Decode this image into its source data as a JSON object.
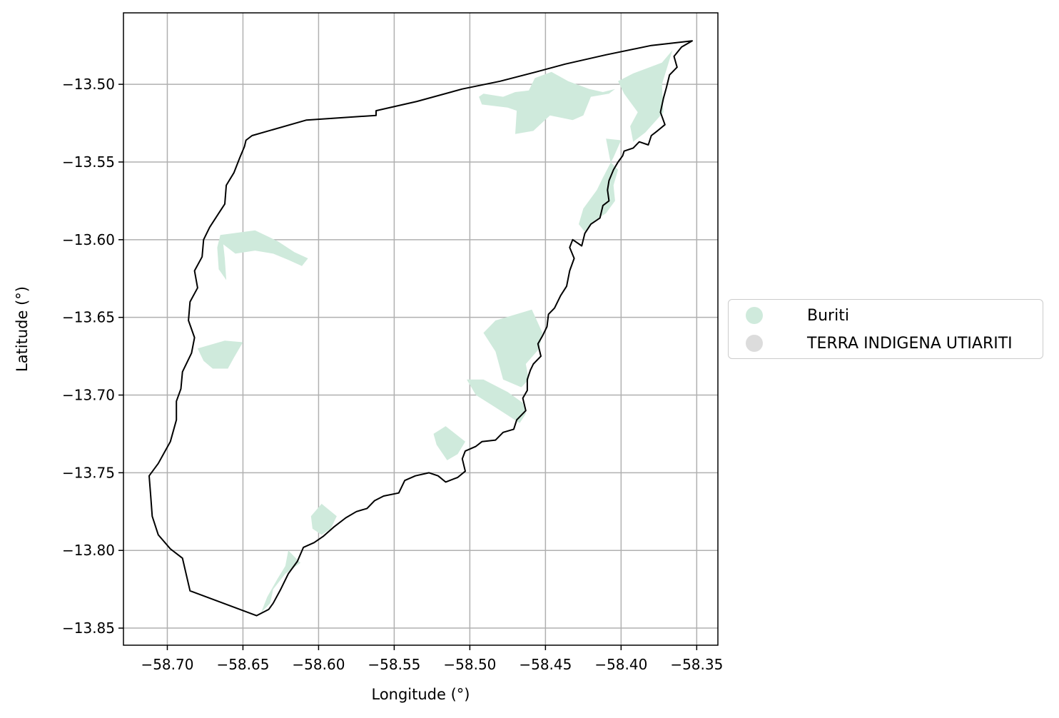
{
  "chart_data": {
    "type": "map",
    "xlabel": "Longitude (°)",
    "ylabel": "Latitude (°)",
    "xlim": [
      -58.729,
      -58.336
    ],
    "ylim": [
      -13.861,
      -13.454
    ],
    "grid": true,
    "x_ticks": [
      {
        "value": -58.7,
        "label": "−58.70"
      },
      {
        "value": -58.65,
        "label": "−58.65"
      },
      {
        "value": -58.6,
        "label": "−58.60"
      },
      {
        "value": -58.55,
        "label": "−58.55"
      },
      {
        "value": -58.5,
        "label": "−58.50"
      },
      {
        "value": -58.45,
        "label": "−58.45"
      },
      {
        "value": -58.4,
        "label": "−58.40"
      },
      {
        "value": -58.35,
        "label": "−58.35"
      }
    ],
    "y_ticks": [
      {
        "value": -13.5,
        "label": "−13.50"
      },
      {
        "value": -13.55,
        "label": "−13.55"
      },
      {
        "value": -13.6,
        "label": "−13.60"
      },
      {
        "value": -13.65,
        "label": "−13.65"
      },
      {
        "value": -13.7,
        "label": "−13.70"
      },
      {
        "value": -13.75,
        "label": "−13.75"
      },
      {
        "value": -13.8,
        "label": "−13.80"
      },
      {
        "value": -13.85,
        "label": "−13.85"
      }
    ],
    "legend_position": "outside-right",
    "legend": [
      {
        "label": "Buriti",
        "color": "#cfeadc"
      },
      {
        "label": "TERRA INDIGENA UTIARITI",
        "color": "#dcdcdc"
      }
    ],
    "boundary": {
      "name": "TERRA INDIGENA UTIARITI",
      "stroke": "#000000",
      "fill": "none",
      "coords": [
        [
          -58.353,
          -13.472
        ],
        [
          -58.36,
          -13.476
        ],
        [
          -58.365,
          -13.482
        ],
        [
          -58.363,
          -13.489
        ],
        [
          -58.368,
          -13.494
        ],
        [
          -58.37,
          -13.502
        ],
        [
          -58.372,
          -13.509
        ],
        [
          -58.374,
          -13.518
        ],
        [
          -58.371,
          -13.526
        ],
        [
          -58.376,
          -13.53
        ],
        [
          -58.38,
          -13.533
        ],
        [
          -58.382,
          -13.539
        ],
        [
          -58.388,
          -13.537
        ],
        [
          -58.392,
          -13.541
        ],
        [
          -58.398,
          -13.543
        ],
        [
          -58.399,
          -13.546
        ],
        [
          -58.402,
          -13.55
        ],
        [
          -58.405,
          -13.555
        ],
        [
          -58.408,
          -13.562
        ],
        [
          -58.409,
          -13.568
        ],
        [
          -58.408,
          -13.575
        ],
        [
          -58.412,
          -13.578
        ],
        [
          -58.414,
          -13.586
        ],
        [
          -58.42,
          -13.59
        ],
        [
          -58.424,
          -13.596
        ],
        [
          -58.426,
          -13.604
        ],
        [
          -58.432,
          -13.6
        ],
        [
          -58.434,
          -13.605
        ],
        [
          -58.431,
          -13.612
        ],
        [
          -58.434,
          -13.62
        ],
        [
          -58.436,
          -13.63
        ],
        [
          -58.44,
          -13.636
        ],
        [
          -58.444,
          -13.644
        ],
        [
          -58.448,
          -13.648
        ],
        [
          -58.449,
          -13.656
        ],
        [
          -58.452,
          -13.662
        ],
        [
          -58.455,
          -13.667
        ],
        [
          -58.453,
          -13.675
        ],
        [
          -58.458,
          -13.68
        ],
        [
          -58.46,
          -13.684
        ],
        [
          -58.462,
          -13.69
        ],
        [
          -58.462,
          -13.697
        ],
        [
          -58.465,
          -13.702
        ],
        [
          -58.463,
          -13.71
        ],
        [
          -58.469,
          -13.716
        ],
        [
          -58.471,
          -13.722
        ],
        [
          -58.478,
          -13.724
        ],
        [
          -58.483,
          -13.729
        ],
        [
          -58.492,
          -13.73
        ],
        [
          -58.496,
          -13.733
        ],
        [
          -58.503,
          -13.736
        ],
        [
          -58.505,
          -13.741
        ],
        [
          -58.503,
          -13.749
        ],
        [
          -58.508,
          -13.753
        ],
        [
          -58.516,
          -13.756
        ],
        [
          -58.521,
          -13.752
        ],
        [
          -58.527,
          -13.75
        ],
        [
          -58.536,
          -13.752
        ],
        [
          -58.543,
          -13.755
        ],
        [
          -58.547,
          -13.763
        ],
        [
          -58.557,
          -13.765
        ],
        [
          -58.563,
          -13.768
        ],
        [
          -58.568,
          -13.773
        ],
        [
          -58.575,
          -13.775
        ],
        [
          -58.582,
          -13.779
        ],
        [
          -58.59,
          -13.785
        ],
        [
          -58.597,
          -13.791
        ],
        [
          -58.603,
          -13.795
        ],
        [
          -58.61,
          -13.798
        ],
        [
          -58.614,
          -13.807
        ],
        [
          -58.62,
          -13.815
        ],
        [
          -58.625,
          -13.825
        ],
        [
          -58.63,
          -13.834
        ],
        [
          -58.633,
          -13.838
        ],
        [
          -58.641,
          -13.842
        ],
        [
          -58.685,
          -13.826
        ],
        [
          -58.69,
          -13.805
        ],
        [
          -58.698,
          -13.799
        ],
        [
          -58.706,
          -13.79
        ],
        [
          -58.71,
          -13.778
        ],
        [
          -58.711,
          -13.765
        ],
        [
          -58.712,
          -13.752
        ],
        [
          -58.706,
          -13.744
        ],
        [
          -58.698,
          -13.73
        ],
        [
          -58.694,
          -13.716
        ],
        [
          -58.694,
          -13.704
        ],
        [
          -58.691,
          -13.696
        ],
        [
          -58.69,
          -13.685
        ],
        [
          -58.684,
          -13.673
        ],
        [
          -58.682,
          -13.663
        ],
        [
          -58.686,
          -13.652
        ],
        [
          -58.685,
          -13.64
        ],
        [
          -58.68,
          -13.631
        ],
        [
          -58.682,
          -13.62
        ],
        [
          -58.677,
          -13.611
        ],
        [
          -58.676,
          -13.6
        ],
        [
          -58.672,
          -13.592
        ],
        [
          -58.666,
          -13.583
        ],
        [
          -58.662,
          -13.577
        ],
        [
          -58.661,
          -13.565
        ],
        [
          -58.656,
          -13.557
        ],
        [
          -58.652,
          -13.547
        ],
        [
          -58.649,
          -13.54
        ],
        [
          -58.648,
          -13.536
        ],
        [
          -58.644,
          -13.533
        ],
        [
          -58.608,
          -13.523
        ],
        [
          -58.562,
          -13.52
        ],
        [
          -58.562,
          -13.517
        ],
        [
          -58.535,
          -13.511
        ],
        [
          -58.505,
          -13.503
        ],
        [
          -58.48,
          -13.498
        ],
        [
          -58.456,
          -13.492
        ],
        [
          -58.437,
          -13.487
        ],
        [
          -58.41,
          -13.481
        ],
        [
          -58.38,
          -13.475
        ],
        [
          -58.353,
          -13.472
        ]
      ]
    },
    "buriti_areas": {
      "name": "Buriti",
      "fill": "#cfeadc",
      "polygons": [
        [
          [
            -58.373,
            -13.486
          ],
          [
            -58.366,
            -13.478
          ],
          [
            -58.373,
            -13.5
          ],
          [
            -58.372,
            -13.518
          ],
          [
            -58.384,
            -13.531
          ],
          [
            -58.392,
            -13.537
          ],
          [
            -58.394,
            -13.527
          ],
          [
            -58.389,
            -13.518
          ],
          [
            -58.398,
            -13.506
          ],
          [
            -58.402,
            -13.498
          ],
          [
            -58.392,
            -13.493
          ]
        ],
        [
          [
            -58.446,
            -13.492
          ],
          [
            -58.457,
            -13.496
          ],
          [
            -58.461,
            -13.504
          ],
          [
            -58.47,
            -13.505
          ],
          [
            -58.478,
            -13.508
          ],
          [
            -58.491,
            -13.506
          ],
          [
            -58.494,
            -13.508
          ],
          [
            -58.492,
            -13.513
          ],
          [
            -58.475,
            -13.515
          ],
          [
            -58.469,
            -13.517
          ],
          [
            -58.47,
            -13.532
          ],
          [
            -58.458,
            -13.53
          ],
          [
            -58.447,
            -13.52
          ],
          [
            -58.432,
            -13.523
          ],
          [
            -58.425,
            -13.52
          ],
          [
            -58.42,
            -13.508
          ],
          [
            -58.408,
            -13.506
          ],
          [
            -58.404,
            -13.503
          ],
          [
            -58.412,
            -13.505
          ],
          [
            -58.421,
            -13.503
          ],
          [
            -58.435,
            -13.498
          ]
        ],
        [
          [
            -58.4,
            -13.536
          ],
          [
            -58.41,
            -13.535
          ],
          [
            -58.407,
            -13.55
          ],
          [
            -58.402,
            -13.555
          ],
          [
            -58.405,
            -13.565
          ],
          [
            -58.404,
            -13.575
          ],
          [
            -58.41,
            -13.583
          ],
          [
            -58.418,
            -13.588
          ],
          [
            -58.424,
            -13.595
          ],
          [
            -58.428,
            -13.59
          ],
          [
            -58.425,
            -13.58
          ],
          [
            -58.416,
            -13.568
          ],
          [
            -58.412,
            -13.56
          ],
          [
            -58.405,
            -13.547
          ]
        ],
        [
          [
            -58.642,
            -13.594
          ],
          [
            -58.627,
            -13.601
          ],
          [
            -58.616,
            -13.608
          ],
          [
            -58.607,
            -13.612
          ],
          [
            -58.611,
            -13.617
          ],
          [
            -58.62,
            -13.613
          ],
          [
            -58.63,
            -13.609
          ],
          [
            -58.642,
            -13.607
          ],
          [
            -58.655,
            -13.609
          ],
          [
            -58.663,
            -13.603
          ],
          [
            -58.662,
            -13.612
          ],
          [
            -58.661,
            -13.626
          ],
          [
            -58.666,
            -13.619
          ],
          [
            -58.667,
            -13.605
          ],
          [
            -58.665,
            -13.597
          ]
        ],
        [
          [
            -58.459,
            -13.645
          ],
          [
            -58.483,
            -13.652
          ],
          [
            -58.491,
            -13.66
          ],
          [
            -58.483,
            -13.672
          ],
          [
            -58.478,
            -13.69
          ],
          [
            -58.466,
            -13.695
          ],
          [
            -58.461,
            -13.69
          ],
          [
            -58.463,
            -13.68
          ],
          [
            -58.454,
            -13.67
          ],
          [
            -58.452,
            -13.66
          ]
        ],
        [
          [
            -58.491,
            -13.69
          ],
          [
            -58.475,
            -13.698
          ],
          [
            -58.465,
            -13.705
          ],
          [
            -58.463,
            -13.712
          ],
          [
            -58.467,
            -13.718
          ],
          [
            -58.483,
            -13.708
          ],
          [
            -58.496,
            -13.7
          ],
          [
            -58.502,
            -13.69
          ]
        ],
        [
          [
            -58.516,
            -13.72
          ],
          [
            -58.503,
            -13.73
          ],
          [
            -58.508,
            -13.738
          ],
          [
            -58.515,
            -13.742
          ],
          [
            -58.522,
            -13.732
          ],
          [
            -58.524,
            -13.725
          ]
        ],
        [
          [
            -58.662,
            -13.665
          ],
          [
            -58.65,
            -13.666
          ],
          [
            -58.656,
            -13.676
          ],
          [
            -58.66,
            -13.683
          ],
          [
            -58.67,
            -13.683
          ],
          [
            -58.676,
            -13.678
          ],
          [
            -58.68,
            -13.67
          ]
        ],
        [
          [
            -58.598,
            -13.77
          ],
          [
            -58.588,
            -13.778
          ],
          [
            -58.592,
            -13.786
          ],
          [
            -58.598,
            -13.79
          ],
          [
            -58.604,
            -13.786
          ],
          [
            -58.605,
            -13.778
          ]
        ],
        [
          [
            -58.62,
            -13.8
          ],
          [
            -58.612,
            -13.808
          ],
          [
            -58.622,
            -13.815
          ],
          [
            -58.63,
            -13.825
          ],
          [
            -58.632,
            -13.834
          ],
          [
            -58.638,
            -13.84
          ],
          [
            -58.634,
            -13.83
          ],
          [
            -58.627,
            -13.818
          ],
          [
            -58.622,
            -13.81
          ]
        ]
      ]
    }
  }
}
